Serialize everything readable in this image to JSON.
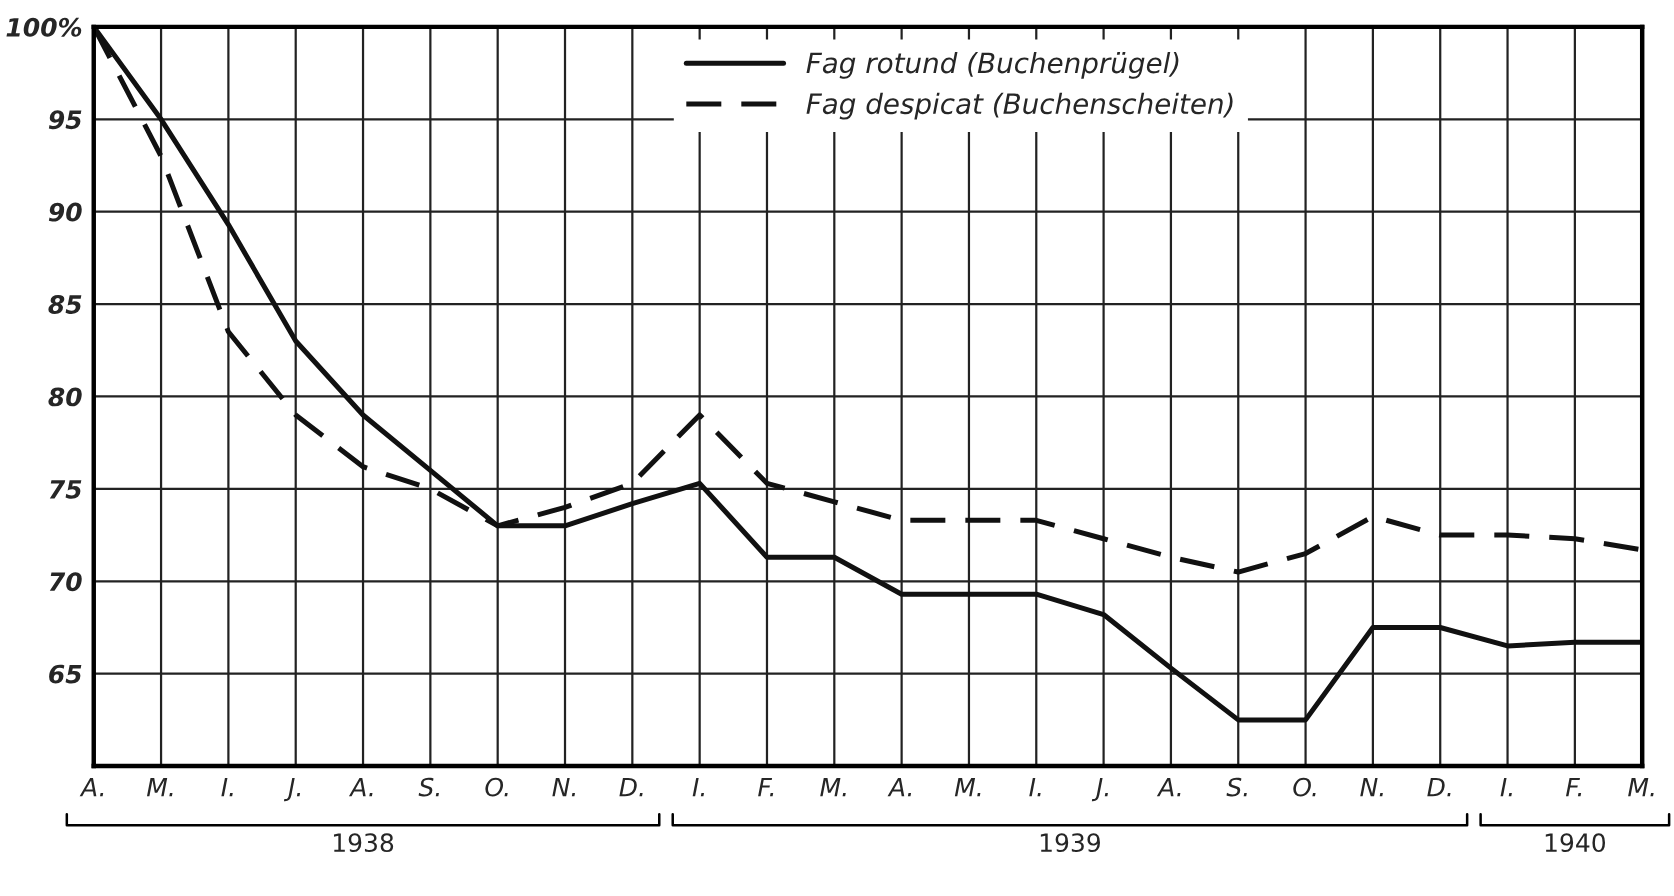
{
  "chart_data": {
    "type": "line",
    "categories": [
      "A.",
      "M.",
      "I.",
      "J.",
      "A.",
      "S.",
      "O.",
      "N.",
      "D.",
      "I.",
      "F.",
      "M.",
      "A.",
      "M.",
      "I.",
      "J.",
      "A.",
      "S.",
      "O.",
      "N.",
      "D.",
      "I.",
      "F.",
      "M."
    ],
    "series": [
      {
        "name": "Fag rotund (Buchenprügel)",
        "color": "#111111",
        "line_style": "solid",
        "values": [
          100,
          95,
          89.3,
          83,
          79,
          76,
          73,
          73,
          74.2,
          75.3,
          71.3,
          71.3,
          69.3,
          69.3,
          69.3,
          68.2,
          65.3,
          62.5,
          62.5,
          67.5,
          67.5,
          66.5,
          66.7,
          66.7
        ]
      },
      {
        "name": "Fag despicat (Buchenscheiten)",
        "color": "#111111",
        "line_style": "dashed",
        "values": [
          100,
          93,
          83.5,
          79,
          76.2,
          75,
          73,
          74,
          75.3,
          79,
          75.3,
          74.3,
          73.3,
          73.3,
          73.3,
          72.3,
          71.3,
          70.5,
          71.5,
          73.5,
          72.5,
          72.5,
          72.3,
          71.7
        ]
      }
    ],
    "ylim": [
      60,
      100
    ],
    "yticks": [
      65,
      70,
      75,
      80,
      85,
      90,
      95,
      {
        "value": 100,
        "label": "100%"
      }
    ],
    "grid": true,
    "legend": "top",
    "marker": "none",
    "annotations": [
      "1938",
      "1939",
      "1940"
    ]
  }
}
